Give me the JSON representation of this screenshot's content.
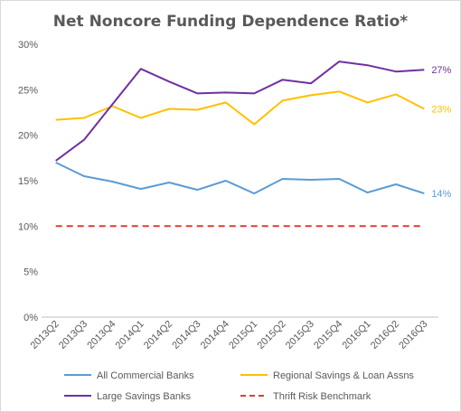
{
  "chart_data": {
    "type": "line",
    "title": "Net Noncore Funding Dependence Ratio*",
    "xlabel": "",
    "ylabel": "",
    "categories": [
      "2013Q2",
      "2013Q3",
      "2013Q4",
      "2014Q1",
      "2014Q2",
      "2014Q3",
      "2014Q4",
      "2015Q1",
      "2015Q2",
      "2015Q3",
      "2015Q4",
      "2016Q1",
      "2016Q2",
      "2016Q3"
    ],
    "ylim": [
      0,
      30
    ],
    "yticks": [
      "0%",
      "5%",
      "10%",
      "15%",
      "20%",
      "25%",
      "30%"
    ],
    "ytick_values": [
      0,
      5,
      10,
      15,
      20,
      25,
      30
    ],
    "grid": false,
    "legend_position": "bottom",
    "series": [
      {
        "name": "All Commercial Banks",
        "color": "#5b9bd5",
        "style": "solid",
        "values": [
          17.0,
          15.5,
          14.9,
          14.1,
          14.8,
          14.0,
          15.0,
          13.6,
          15.2,
          15.1,
          15.2,
          13.7,
          14.6,
          13.6
        ],
        "end_label": "14%"
      },
      {
        "name": "Regional Savings & Loan Assns",
        "color": "#ffc000",
        "style": "solid",
        "values": [
          21.7,
          21.9,
          23.2,
          21.9,
          22.9,
          22.8,
          23.6,
          21.2,
          23.8,
          24.4,
          24.8,
          23.6,
          24.5,
          22.9
        ],
        "end_label": "23%"
      },
      {
        "name": "Large Savings Banks",
        "color": "#7030a0",
        "style": "solid",
        "values": [
          17.2,
          19.5,
          23.4,
          27.3,
          25.9,
          24.6,
          24.7,
          24.6,
          26.1,
          25.7,
          28.1,
          27.7,
          27.0,
          27.2
        ],
        "end_label": "27%"
      },
      {
        "name": "Thrift Risk Benchmark",
        "color": "#e03c31",
        "style": "dashed",
        "values": [
          10,
          10,
          10,
          10,
          10,
          10,
          10,
          10,
          10,
          10,
          10,
          10,
          10,
          10
        ],
        "end_label": ""
      }
    ]
  }
}
